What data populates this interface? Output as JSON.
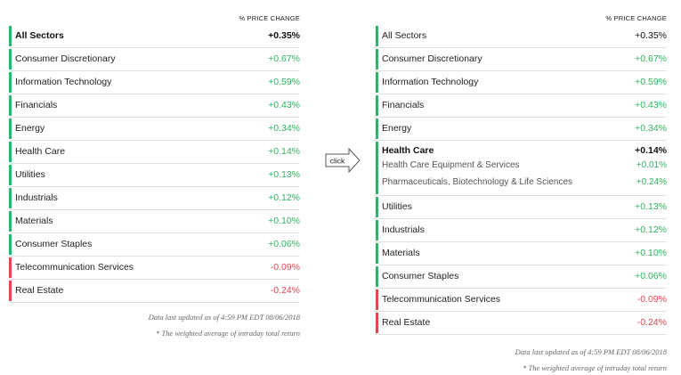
{
  "header": "% PRICE CHANGE",
  "left": {
    "total": {
      "name": "All Sectors",
      "value": "+0.35%"
    },
    "rows": [
      {
        "name": "Consumer Discretionary",
        "value": "+0.67%",
        "neg": false
      },
      {
        "name": "Information Technology",
        "value": "+0.59%",
        "neg": false
      },
      {
        "name": "Financials",
        "value": "+0.43%",
        "neg": false
      },
      {
        "name": "Energy",
        "value": "+0.34%",
        "neg": false
      },
      {
        "name": "Health Care",
        "value": "+0.14%",
        "neg": false
      },
      {
        "name": "Utilities",
        "value": "+0.13%",
        "neg": false
      },
      {
        "name": "Industrials",
        "value": "+0.12%",
        "neg": false
      },
      {
        "name": "Materials",
        "value": "+0.10%",
        "neg": false
      },
      {
        "name": "Consumer Staples",
        "value": "+0.06%",
        "neg": false
      },
      {
        "name": "Telecommunication Services",
        "value": "-0.09%",
        "neg": true
      },
      {
        "name": "Real Estate",
        "value": "-0.24%",
        "neg": true
      }
    ]
  },
  "right": {
    "total": {
      "name": "All Sectors",
      "value": "+0.35%"
    },
    "rows_before": [
      {
        "name": "Consumer Discretionary",
        "value": "+0.67%",
        "neg": false
      },
      {
        "name": "Information Technology",
        "value": "+0.59%",
        "neg": false
      },
      {
        "name": "Financials",
        "value": "+0.43%",
        "neg": false
      },
      {
        "name": "Energy",
        "value": "+0.34%",
        "neg": false
      }
    ],
    "expanded": {
      "name": "Health Care",
      "value": "+0.14%",
      "subs": [
        {
          "name": "Health Care Equipment & Services",
          "value": "+0.01%"
        },
        {
          "name": "Pharmaceuticals, Biotechnology & Life Sciences",
          "value": "+0.24%"
        }
      ]
    },
    "rows_after": [
      {
        "name": "Utilities",
        "value": "+0.13%",
        "neg": false
      },
      {
        "name": "Industrials",
        "value": "+0.12%",
        "neg": false
      },
      {
        "name": "Materials",
        "value": "+0.10%",
        "neg": false
      },
      {
        "name": "Consumer Staples",
        "value": "+0.06%",
        "neg": false
      },
      {
        "name": "Telecommunication Services",
        "value": "-0.09%",
        "neg": true
      },
      {
        "name": "Real Estate",
        "value": "-0.24%",
        "neg": true
      }
    ]
  },
  "notes": {
    "updated": "Data last updated as of 4:59 PM EDT 08/06/2018",
    "weighted": "* The weighted average of intraday total return"
  },
  "click_label": "click",
  "colors": {
    "positive": "#2fb35c",
    "negative": "#e0484e",
    "bar_positive": "#2db66b"
  }
}
